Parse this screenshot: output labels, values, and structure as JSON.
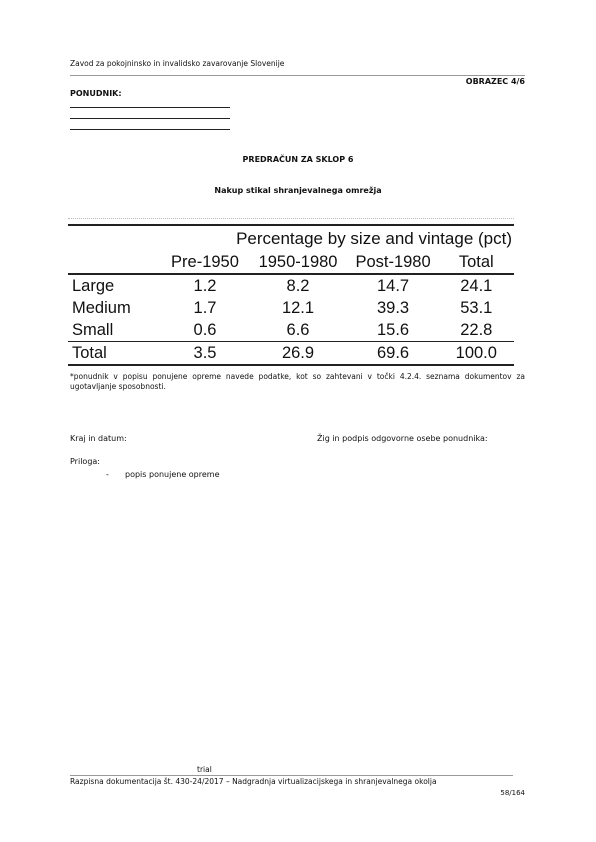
{
  "header": {
    "institution": "Zavod za pokojninsko in invalidsko zavarovanje Slovenije",
    "form_code": "OBRAZEC 4/6"
  },
  "bidder": {
    "label": "PONUDNIK:"
  },
  "titles": {
    "main": "PREDRAČUN ZA SKLOP 6",
    "sub": "Nakup stikal shranjevalnega omrežja"
  },
  "table": {
    "caption": "Percentage by size and vintage (pct)",
    "columns": [
      "Pre-1950",
      "1950-1980",
      "Post-1980",
      "Total"
    ],
    "rows": [
      {
        "label": "Large",
        "values": [
          "1.2",
          "8.2",
          "14.7",
          "24.1"
        ]
      },
      {
        "label": "Medium",
        "values": [
          "1.7",
          "12.1",
          "39.3",
          "53.1"
        ]
      },
      {
        "label": "Small",
        "values": [
          "0.6",
          "6.6",
          "15.6",
          "22.8"
        ]
      },
      {
        "label": "Total",
        "values": [
          "3.5",
          "26.9",
          "69.6",
          "100.0"
        ]
      }
    ]
  },
  "note": "*ponudnik v popisu ponujene opreme navede podatke, kot so zahtevani v točki 4.2.4. seznama dokumentov za ugotavljanje sposobnosti.",
  "signature": {
    "place_date": "Kraj in datum:",
    "stamp": "Žig in podpis odgovorne osebe ponudnika:"
  },
  "attachments": {
    "label": "Priloga:",
    "dash": "-",
    "items": [
      "popis ponujene opreme"
    ]
  },
  "footer": {
    "trial": "trial",
    "text": "Razpisna dokumentacija št. 430-24/2017 – Nadgradnja virtualizacijskega in shranjevalnega okolja",
    "page": "58/164"
  }
}
